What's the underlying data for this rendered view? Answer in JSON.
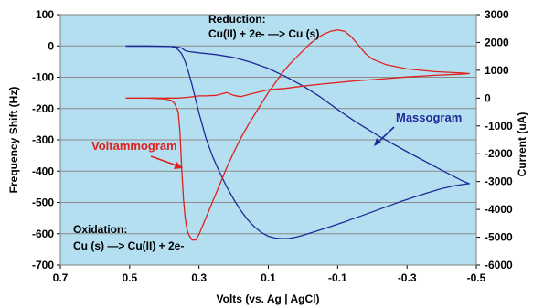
{
  "chart_data": {
    "type": "line",
    "xlabel": "Volts  (vs. Ag | AgCl)",
    "ylabel_left": "Frequency  Shift (Hz)",
    "ylabel_right": "Current (uA)",
    "xlim": [
      0.7,
      -0.5
    ],
    "xticks": [
      "0.7",
      "0.5",
      "0.3",
      "0.1",
      "-0.1",
      "-0.3",
      "-0.5"
    ],
    "ylim_left": [
      -700,
      100
    ],
    "yticks_left": [
      "100",
      "0",
      "-100",
      "-200",
      "-300",
      "-400",
      "-500",
      "-600",
      "-700"
    ],
    "ylim_right": [
      -6000,
      3000
    ],
    "yticks_right": [
      "3000",
      "2000",
      "1000",
      "0",
      "-1000",
      "-2000",
      "-3000",
      "-4000",
      "-5000",
      "-6000"
    ],
    "plot_background": "#b4dff0",
    "grid": "horizontal",
    "series": [
      {
        "name": "Massogram",
        "axis": "left",
        "color": "#1f2a9a",
        "x": [
          0.51,
          0.45,
          0.38,
          0.37,
          0.36,
          0.35,
          0.34,
          0.33,
          0.32,
          0.31,
          0.3,
          0.29,
          0.28,
          0.26,
          0.24,
          0.22,
          0.2,
          0.18,
          0.16,
          0.14,
          0.12,
          0.1,
          0.08,
          0.06,
          0.04,
          0.02,
          0.0,
          -0.02,
          -0.04,
          -0.08,
          -0.12,
          -0.16,
          -0.2,
          -0.24,
          -0.28,
          -0.32,
          -0.36,
          -0.4,
          -0.44,
          -0.47,
          -0.48,
          -0.46,
          -0.4,
          -0.3,
          -0.22,
          -0.15,
          -0.1,
          -0.05,
          0.0,
          0.05,
          0.1,
          0.15,
          0.2,
          0.25,
          0.3,
          0.33,
          0.34,
          0.345,
          0.35,
          0.36,
          0.38,
          0.4,
          0.45,
          0.51
        ],
        "values": [
          -1,
          -1,
          -2,
          -5,
          -12,
          -25,
          -50,
          -85,
          -125,
          -170,
          -215,
          -255,
          -295,
          -355,
          -405,
          -450,
          -490,
          -525,
          -555,
          -578,
          -596,
          -608,
          -614,
          -616,
          -615,
          -611,
          -605,
          -598,
          -591,
          -577,
          -562,
          -546,
          -530,
          -514,
          -498,
          -483,
          -469,
          -456,
          -446,
          -441,
          -440,
          -431,
          -397,
          -338,
          -289,
          -241,
          -203,
          -163,
          -128,
          -98,
          -72,
          -52,
          -37,
          -28,
          -22,
          -18,
          -15,
          -11,
          -7,
          -4,
          -2,
          -1,
          0,
          0
        ]
      },
      {
        "name": "Voltammogram",
        "axis": "right",
        "color": "#e0201c",
        "x": [
          0.51,
          0.45,
          0.4,
          0.38,
          0.37,
          0.36,
          0.355,
          0.35,
          0.345,
          0.34,
          0.335,
          0.33,
          0.32,
          0.31,
          0.3,
          0.29,
          0.28,
          0.26,
          0.24,
          0.22,
          0.2,
          0.18,
          0.16,
          0.14,
          0.12,
          0.1,
          0.08,
          0.06,
          0.04,
          0.02,
          0.0,
          -0.02,
          -0.04,
          -0.06,
          -0.08,
          -0.1,
          -0.12,
          -0.14,
          -0.16,
          -0.18,
          -0.2,
          -0.24,
          -0.3,
          -0.38,
          -0.46,
          -0.48,
          -0.45,
          -0.38,
          -0.3,
          -0.22,
          -0.15,
          -0.1,
          -0.05,
          0.0,
          0.05,
          0.1,
          0.15,
          0.18,
          0.2,
          0.22,
          0.25,
          0.28,
          0.3,
          0.33,
          0.36,
          0.4,
          0.45,
          0.51
        ],
        "values": [
          0,
          0,
          -30,
          -80,
          -200,
          -500,
          -1200,
          -2500,
          -3600,
          -4300,
          -4700,
          -4900,
          -5100,
          -5100,
          -4900,
          -4600,
          -4300,
          -3700,
          -3100,
          -2500,
          -1950,
          -1450,
          -1000,
          -600,
          -200,
          200,
          550,
          900,
          1200,
          1450,
          1700,
          1950,
          2150,
          2300,
          2400,
          2450,
          2400,
          2200,
          1900,
          1600,
          1400,
          1200,
          1050,
          950,
          900,
          880,
          860,
          820,
          760,
          680,
          620,
          560,
          500,
          430,
          350,
          300,
          150,
          50,
          100,
          200,
          100,
          80,
          80,
          30,
          0,
          0,
          0,
          0
        ]
      }
    ]
  },
  "annotations": {
    "reduction_title": "Reduction:",
    "reduction_eq": "Cu(II) + 2e- —> Cu (s)",
    "oxidation_title": "Oxidation:",
    "oxidation_eq": "Cu (s) —> Cu(II) + 2e-",
    "massogram_label": "Massogram",
    "voltammogram_label": "Voltammogram"
  }
}
